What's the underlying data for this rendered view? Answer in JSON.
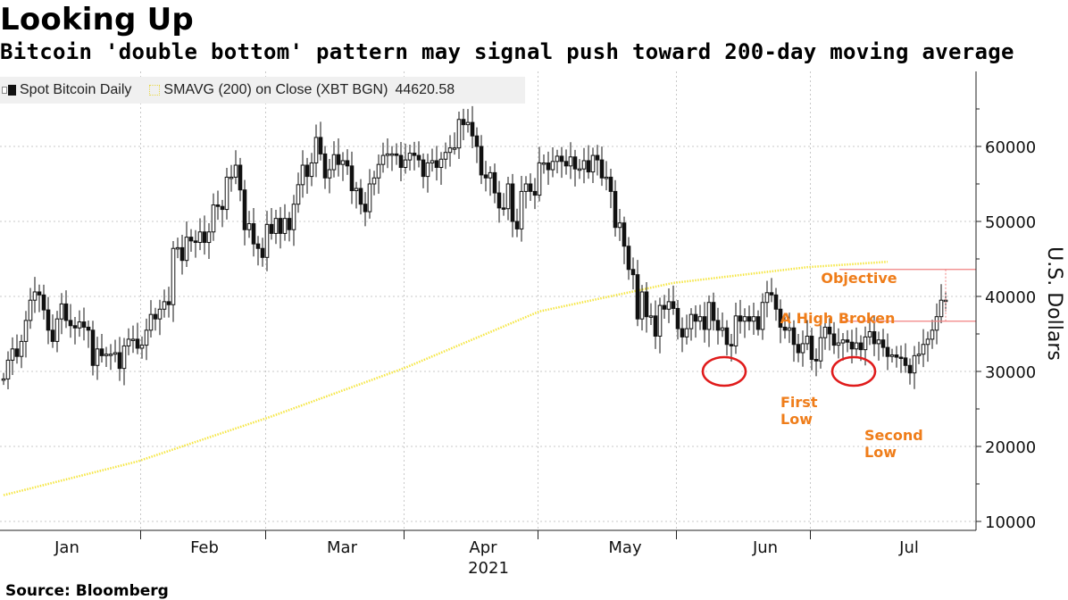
{
  "title": "Looking Up",
  "subtitle": "Bitcoin 'double bottom' pattern may signal push toward 200-day moving average",
  "legend": {
    "candle_label": "Spot Bitcoin Daily",
    "avg_label": "SMAVG (200)  on Close (XBT BGN)",
    "avg_value": "44620.58"
  },
  "source": "Source:  Bloomberg",
  "chart_data": {
    "type": "candlestick",
    "ylabel": "U.S. Dollars",
    "ylim": [
      8500,
      68000
    ],
    "yticks": [
      10000,
      20000,
      30000,
      40000,
      50000,
      60000
    ],
    "ytick_labels": [
      "10000",
      "20000",
      "30000",
      "40000",
      "50000",
      "60000"
    ],
    "months": [
      "Jan",
      "Feb",
      "Mar",
      "Apr",
      "May",
      "Jun",
      "Jul"
    ],
    "year_label": "2021",
    "grid": true,
    "colors": {
      "candle": "#111111",
      "sma": "#f5e642",
      "annotation": "#ef7d1a",
      "marker": "#e01b1b",
      "line": "#f08080"
    },
    "series": [
      {
        "name": "Spot Bitcoin Daily",
        "kind": "candlestick",
        "start_date": "2020-12-31",
        "close": [
          29000,
          31500,
          33000,
          32000,
          34000,
          36800,
          39500,
          40600,
          40200,
          38200,
          35500,
          34000,
          37000,
          39000,
          36800,
          36100,
          35800,
          36600,
          35900,
          35500,
          30800,
          33000,
          32100,
          32300,
          32300,
          32500,
          30400,
          33400,
          34300,
          34300,
          33100,
          33500,
          35500,
          37600,
          37000,
          38300,
          39300,
          38900,
          46400,
          46500,
          44800,
          47900,
          47400,
          47200,
          48600,
          47200,
          48600,
          52200,
          52000,
          51600,
          55900,
          55900,
          57500,
          54200,
          48900,
          49700,
          47000,
          46400,
          45200,
          49600,
          48400,
          50400,
          48400,
          50400,
          48900,
          52300,
          54900,
          57500,
          56000,
          57800,
          61200,
          59000,
          55800,
          56900,
          58900,
          57600,
          58100,
          57400,
          54100,
          54400,
          52300,
          51300,
          55000,
          55800,
          57600,
          58800,
          59000,
          59000,
          58800,
          57200,
          58200,
          59100,
          58800,
          58200,
          56000,
          57800,
          58100,
          57200,
          58300,
          59200,
          59800,
          59800,
          63600,
          62900,
          63200,
          61400,
          60000,
          56200,
          55800,
          56500,
          53800,
          51800,
          51700,
          55000,
          50000,
          49000,
          54000,
          55000,
          54000,
          53500,
          57800,
          57800,
          56900,
          58000,
          58700,
          58000,
          57400,
          58600,
          57000,
          57000,
          58100,
          56600,
          58800,
          58200,
          55800,
          55900,
          54000,
          49200,
          49800,
          46700,
          43600,
          42900,
          37000,
          40600,
          37300,
          37400,
          34700,
          38800,
          38300,
          39300,
          38400,
          35700,
          34600,
          35700,
          37600,
          36700,
          37300,
          35600,
          39200,
          36800,
          35500,
          35800,
          33600,
          33400,
          37400,
          36700,
          37300,
          36700,
          37300,
          35600,
          39200,
          40500,
          40200,
          38300,
          35900,
          35500,
          35800,
          33600,
          32500,
          33700,
          34700,
          31600,
          31400,
          34500,
          35900,
          35000,
          33500,
          33800,
          34200,
          33900,
          33000,
          33800,
          32900,
          34600,
          35300,
          33700,
          34200,
          33200,
          32000,
          32200,
          31900,
          31800,
          30800,
          29800,
          32100,
          32300,
          33600,
          34300,
          35500,
          37300,
          39500,
          39500
        ],
        "open": [
          29000,
          29000,
          31500,
          33000,
          32000,
          34000,
          36800,
          39500,
          40600,
          40200,
          38200,
          35500,
          34000,
          37000,
          39000,
          36800,
          36100,
          35800,
          36600,
          35900,
          35500,
          30800,
          33000,
          32100,
          32300,
          32300,
          32500,
          30400,
          33400,
          34300,
          34300,
          33100,
          33500,
          35500,
          37600,
          37000,
          38300,
          39300,
          38900,
          46400,
          46500,
          44800,
          47900,
          47400,
          47200,
          48600,
          47200,
          48600,
          52200,
          52000,
          51600,
          55900,
          55900,
          57500,
          54200,
          48900,
          49700,
          47000,
          46400,
          45200,
          49600,
          48400,
          50400,
          48400,
          50400,
          48900,
          52300,
          54900,
          57500,
          56000,
          57800,
          61200,
          59000,
          55800,
          56900,
          58900,
          57600,
          58100,
          57400,
          54100,
          54400,
          52300,
          51300,
          55000,
          55800,
          57600,
          58800,
          59000,
          59000,
          58800,
          57200,
          58200,
          59100,
          58800,
          58200,
          56000,
          57800,
          58100,
          57200,
          58300,
          59200,
          59800,
          59800,
          63600,
          62900,
          63200,
          61400,
          60000,
          56200,
          55800,
          56500,
          53800,
          51800,
          51700,
          55000,
          50000,
          49000,
          54000,
          55000,
          54000,
          53500,
          57800,
          57800,
          56900,
          58000,
          58700,
          58000,
          57400,
          58600,
          57000,
          57000,
          58100,
          56600,
          58800,
          58200,
          55800,
          55900,
          54000,
          49200,
          49800,
          46700,
          43600,
          42900,
          37000,
          40600,
          37300,
          37400,
          34700,
          38800,
          38300,
          39300,
          38400,
          35700,
          34600,
          35700,
          37600,
          36700,
          37300,
          35600,
          39200,
          36800,
          35500,
          35800,
          33600,
          33400,
          37400,
          36700,
          37300,
          36700,
          37300,
          35600,
          39200,
          40500,
          40200,
          38300,
          35900,
          35500,
          35800,
          33600,
          32500,
          33700,
          34700,
          31600,
          31400,
          34500,
          35900,
          35000,
          33500,
          33800,
          34200,
          33900,
          33000,
          33800,
          32900,
          34600,
          35300,
          33700,
          34200,
          33200,
          32000,
          32200,
          31900,
          31800,
          30800,
          29800,
          32100,
          32300,
          33600,
          34300,
          35500,
          37300,
          39500
        ]
      },
      {
        "name": "SMAVG (200)  on Close (XBT BGN)",
        "kind": "line",
        "days": [
          0,
          30,
          60,
          90,
          120,
          150,
          180,
          198
        ],
        "values": [
          13500,
          18000,
          24000,
          30500,
          38000,
          41800,
          43900,
          44620
        ]
      }
    ],
    "annotations": [
      {
        "text": "Objective"
      },
      {
        "text": "A High Broken"
      },
      {
        "text": "First",
        "text2": "Low"
      },
      {
        "text": "Second",
        "text2": "Low"
      }
    ],
    "hlines": [
      {
        "y": 43600
      },
      {
        "y": 36700
      }
    ],
    "circles": [
      {
        "day": 161,
        "y": 30000
      },
      {
        "day": 190,
        "y": 30000
      }
    ]
  }
}
